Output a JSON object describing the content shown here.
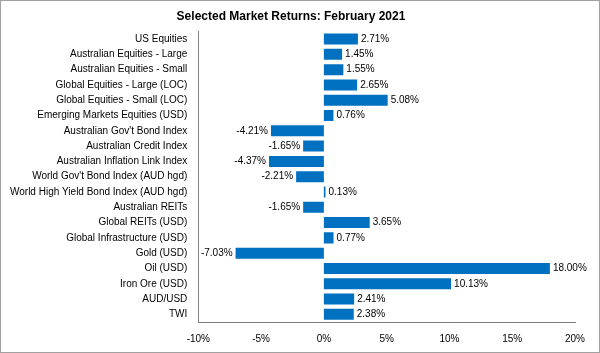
{
  "chart_data": {
    "type": "bar",
    "orientation": "horizontal",
    "title": "Selected Market Returns: February 2021",
    "categories": [
      "US Equities",
      "Australian Equities - Large",
      "Australian Equities - Small",
      "Global Equities - Large (LOC)",
      "Global Equities - Small (LOC)",
      "Emerging Markets Equities (USD)",
      "Australian Gov't Bond Index",
      "Australian Credit Index",
      "Australian Inflation Link Index",
      "World Gov't Bond Index (AUD hgd)",
      "World High Yield Bond Index (AUD hgd)",
      "Australian REITs",
      "Global REITs (USD)",
      "Global Infrastructure (USD)",
      "Gold (USD)",
      "Oil (USD)",
      "Iron Ore (USD)",
      "AUD/USD",
      "TWI"
    ],
    "values": [
      2.71,
      1.45,
      1.55,
      2.65,
      5.08,
      0.76,
      -4.21,
      -1.65,
      -4.37,
      -2.21,
      0.13,
      -1.65,
      3.65,
      0.77,
      -7.03,
      18.0,
      10.13,
      2.41,
      2.38
    ],
    "value_labels": [
      "2.71%",
      "1.45%",
      "1.55%",
      "2.65%",
      "5.08%",
      "0.76%",
      "-4.21%",
      "-1.65%",
      "-4.37%",
      "-2.21%",
      "0.13%",
      "-1.65%",
      "3.65%",
      "0.77%",
      "-7.03%",
      "18.00%",
      "10.13%",
      "2.41%",
      "2.38%"
    ],
    "color": "#0070c0",
    "xlim": [
      -10,
      20
    ],
    "xticks": [
      {
        "value": -10,
        "label": "-10%"
      },
      {
        "value": -5,
        "label": "-5%"
      },
      {
        "value": 0,
        "label": "0%"
      },
      {
        "value": 5,
        "label": "5%"
      },
      {
        "value": 10,
        "label": "10%"
      },
      {
        "value": 15,
        "label": "15%"
      },
      {
        "value": 20,
        "label": "20%"
      }
    ],
    "grid": false,
    "data_labels": true
  }
}
